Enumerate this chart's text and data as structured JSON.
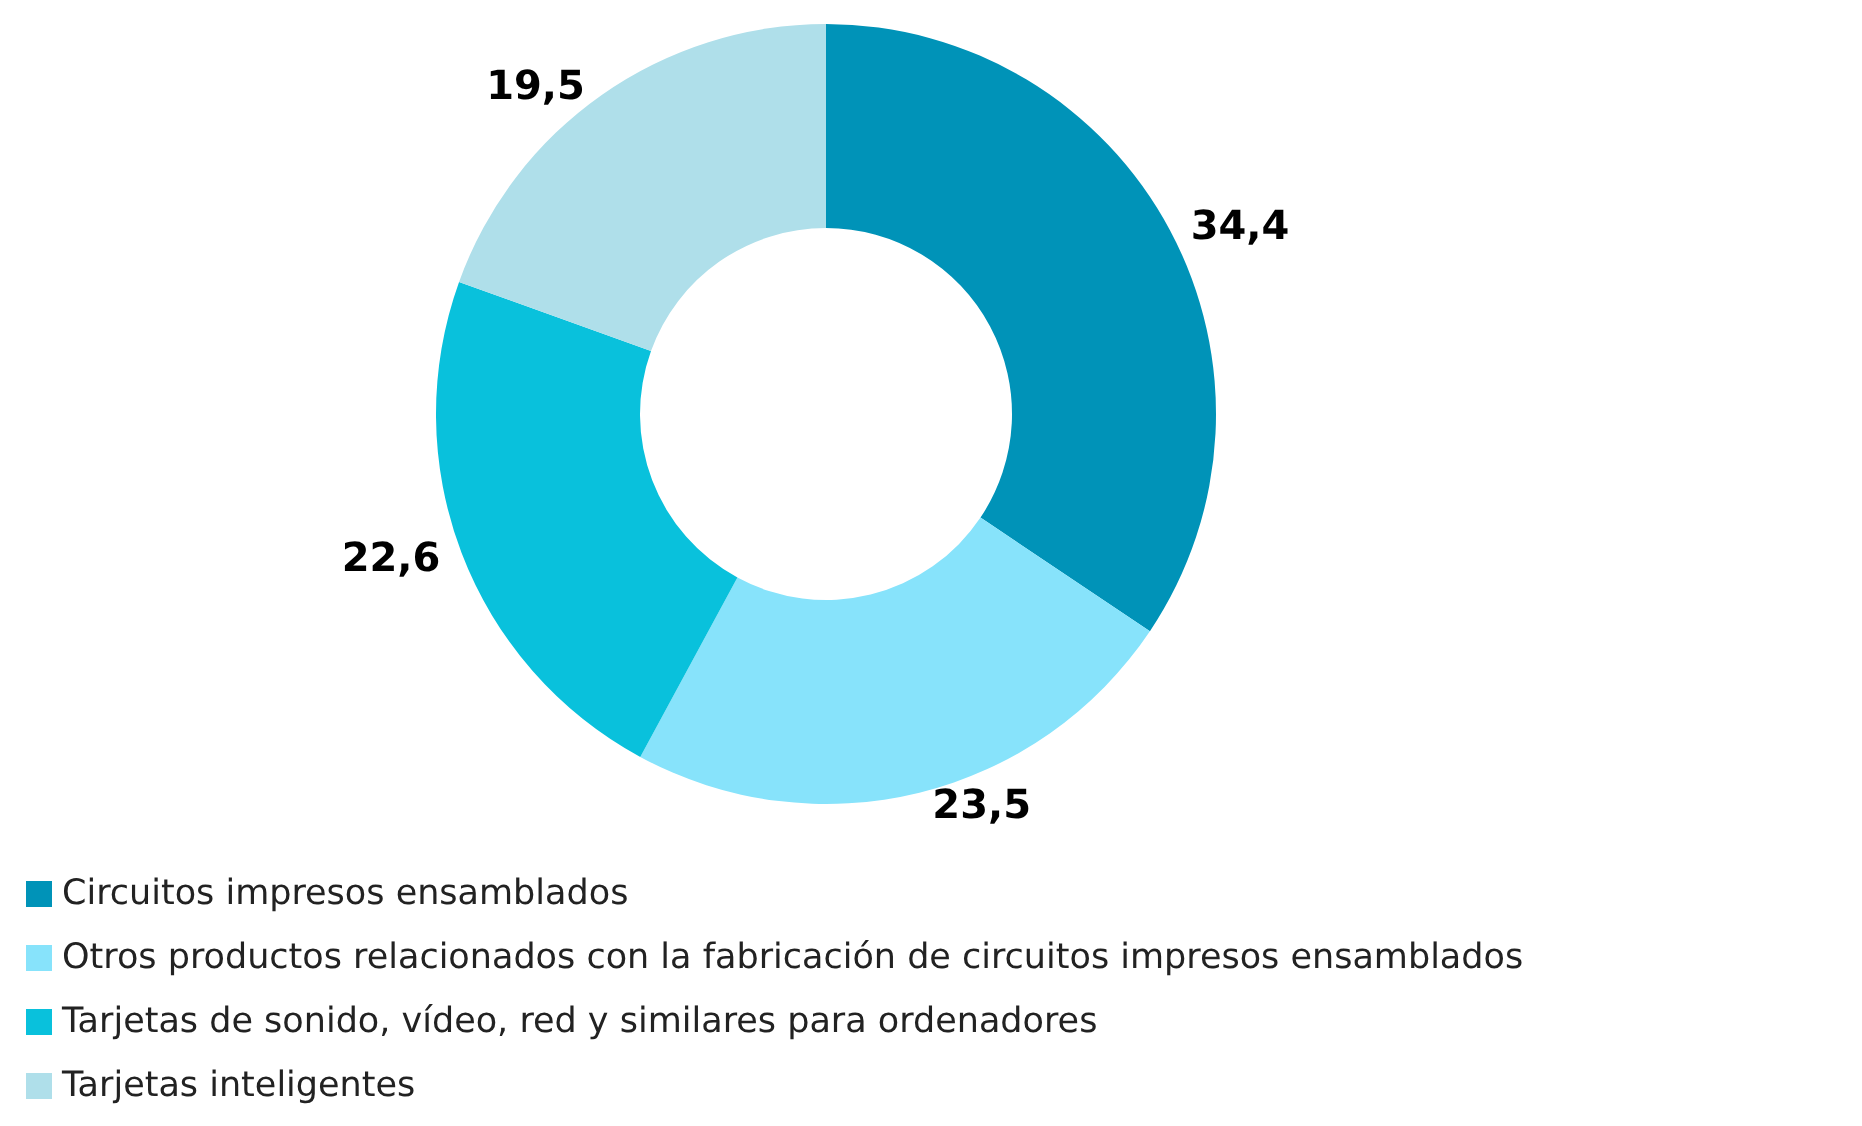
{
  "chart_data": {
    "type": "donut",
    "categories": [
      "Circuitos impresos ensamblados",
      "Otros productos relacionados con la fabricación de circuitos impresos ensamblados",
      "Tarjetas de sonido, vídeo, red y similares para ordenadores",
      "Tarjetas inteligentes"
    ],
    "values": [
      34.4,
      23.5,
      22.6,
      19.5
    ],
    "value_labels": [
      "34,4",
      "23,5",
      "22,6",
      "19,5"
    ],
    "colors": [
      "#0093b8",
      "#87e3fb",
      "#09c1dc",
      "#afdfea"
    ],
    "legend": "bottom left"
  }
}
